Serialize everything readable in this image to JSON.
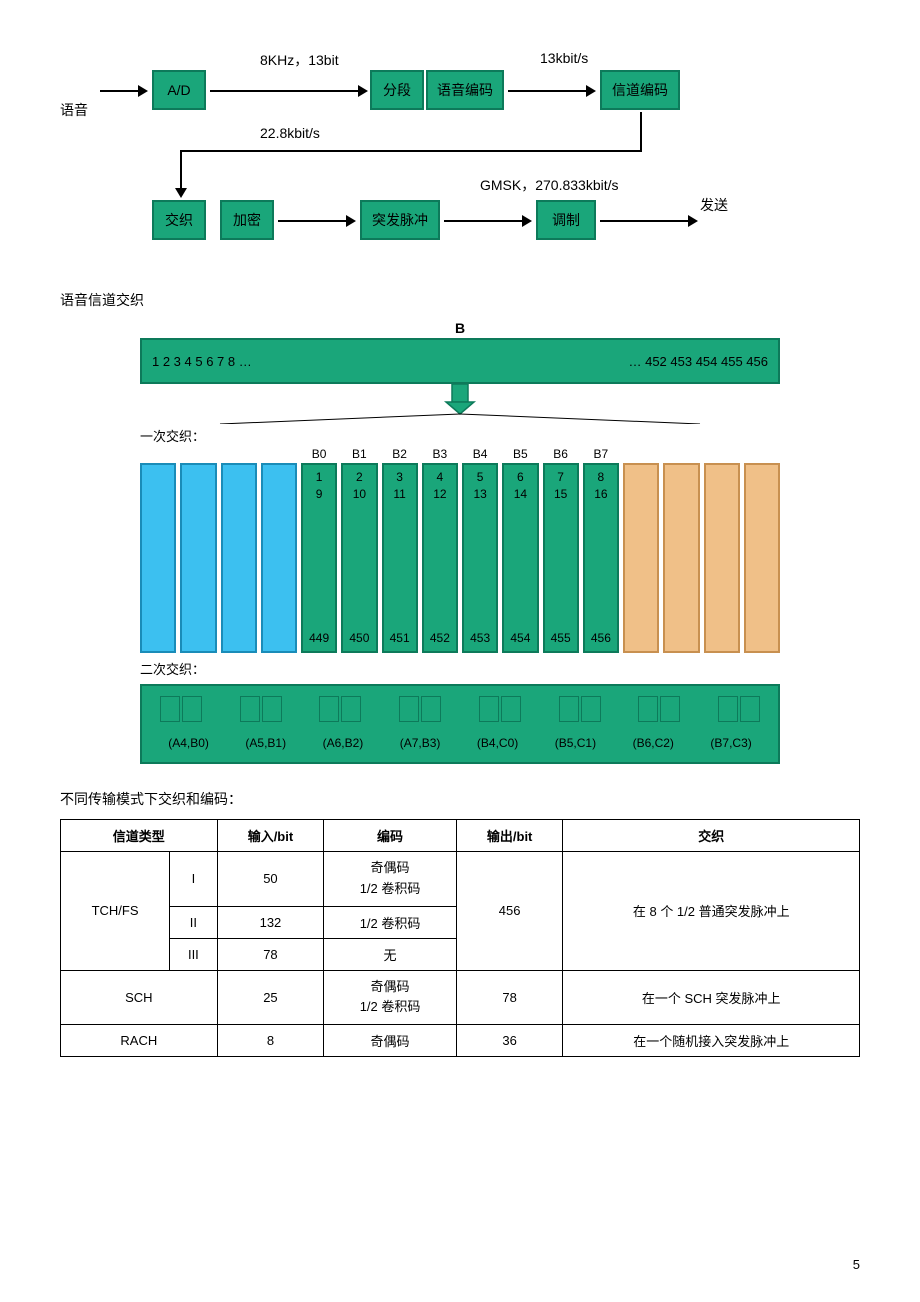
{
  "flowchart": {
    "input_label": "语音",
    "output_label": "发送",
    "boxes": {
      "ad": "A/D",
      "seg": "分段",
      "voice_enc": "语音编码",
      "chan_enc": "信道编码",
      "interleave": "交织",
      "encrypt": "加密",
      "burst": "突发脉冲",
      "mod": "调制"
    },
    "edge_labels": {
      "ad_to_seg": "8KHz，13bit",
      "voice_to_chan": "13kbit/s",
      "chan_to_int": "22.8kbit/s",
      "mod_to_out": "GMSK，270.833kbit/s"
    },
    "colors": {
      "box_fill": "#1aa67a",
      "box_border": "#0d7a5a",
      "arrow": "#000000"
    }
  },
  "interleave_title": "语音信道交织",
  "interleave": {
    "top_label": "B",
    "top_left": "1 2 3 4 5 6 7 8 …",
    "top_right": "… 452 453 454 455 456",
    "first_label": "一次交织：",
    "headers": [
      "B0",
      "B1",
      "B2",
      "B3",
      "B4",
      "B5",
      "B6",
      "B7"
    ],
    "col_top_row1": [
      "1",
      "2",
      "3",
      "4",
      "5",
      "6",
      "7",
      "8"
    ],
    "col_top_row2": [
      "9",
      "10",
      "11",
      "12",
      "13",
      "14",
      "15",
      "16"
    ],
    "col_bottom": [
      "449",
      "450",
      "451",
      "452",
      "453",
      "454",
      "455",
      "456"
    ],
    "second_label": "二次交织：",
    "second_pairs": [
      "(A4,B0)",
      "(A5,B1)",
      "(A6,B2)",
      "(A7,B3)",
      "(B4,C0)",
      "(B5,C1)",
      "(B6,C2)",
      "(B7,C3)"
    ],
    "colors": {
      "blue": "#3cc0f0",
      "green": "#1aa67a",
      "orange": "#f0c088"
    }
  },
  "table": {
    "title": "不同传输模式下交织和编码：",
    "headers": [
      "信道类型",
      "输入/bit",
      "编码",
      "输出/bit",
      "交织"
    ],
    "rows": {
      "tchfs": {
        "name": "TCH/FS",
        "sub": [
          {
            "cls": "I",
            "in": "50",
            "enc": "奇偶码\n1/2 卷积码"
          },
          {
            "cls": "II",
            "in": "132",
            "enc": "1/2 卷积码"
          },
          {
            "cls": "III",
            "in": "78",
            "enc": "无"
          }
        ],
        "out": "456",
        "il": "在 8 个 1/2 普通突发脉冲上"
      },
      "sch": {
        "name": "SCH",
        "in": "25",
        "enc": "奇偶码\n1/2 卷积码",
        "out": "78",
        "il": "在一个 SCH 突发脉冲上"
      },
      "rach": {
        "name": "RACH",
        "in": "8",
        "enc": "奇偶码",
        "out": "36",
        "il": "在一个随机接入突发脉冲上"
      }
    }
  },
  "page_number": "5"
}
